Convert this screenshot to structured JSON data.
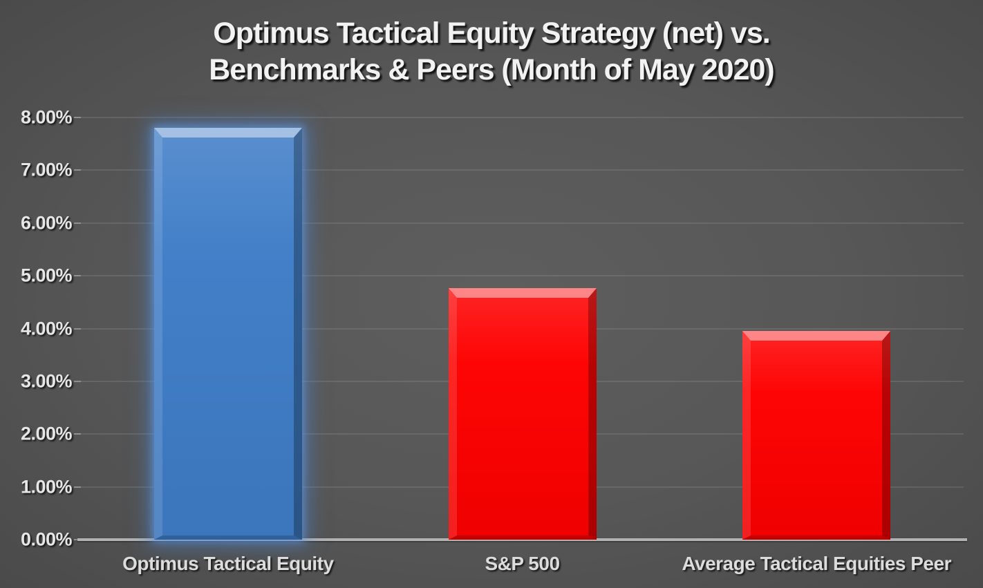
{
  "title": {
    "line1": "Optimus Tactical Equity Strategy (net) vs.",
    "line2": "Benchmarks & Peers (Month of May 2020)"
  },
  "chart_data": {
    "type": "bar",
    "title": "Optimus Tactical Equity Strategy (net) vs. Benchmarks & Peers (Month of May 2020)",
    "categories": [
      "Optimus Tactical Equity",
      "S&P 500",
      "Average Tactical Equities Peer"
    ],
    "values": [
      7.8,
      4.76,
      3.95
    ],
    "bar_colors": [
      "#3f7dc7",
      "#fe0000",
      "#fe0000"
    ],
    "bar_glow": [
      true,
      false,
      false
    ],
    "xlabel": "",
    "ylabel": "",
    "ylim": [
      0,
      8
    ],
    "ytick_step": 1,
    "yticks": [
      "0.00%",
      "1.00%",
      "2.00%",
      "3.00%",
      "4.00%",
      "5.00%",
      "6.00%",
      "7.00%",
      "8.00%"
    ],
    "grid": true,
    "legend": false
  },
  "style": {
    "background_center": "#5a5a5a",
    "background_edge": "#262626",
    "gridline_color": "#6b6b6b",
    "axis_line_color": "#b2b2b2",
    "text_color": "#e8e8e8",
    "title_color": "#f2f2f2",
    "blue_bar": "#3f7dc7",
    "red_bar": "#fe0000"
  }
}
